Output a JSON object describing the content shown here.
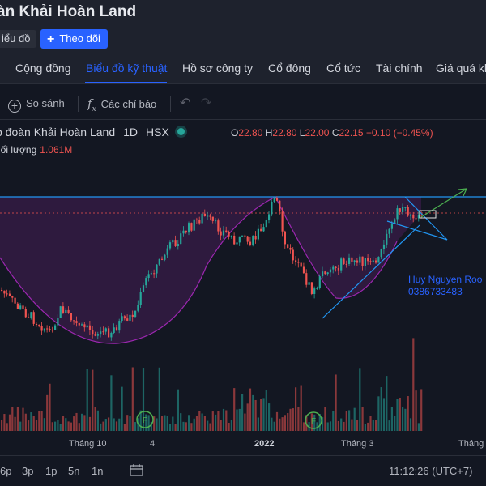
{
  "header": {
    "title": "àn Khải Hoàn Land",
    "chart_button": "iểu đồ",
    "follow_button": "Theo dõi"
  },
  "tabs": [
    {
      "label": "Cộng đồng"
    },
    {
      "label": "Biểu đồ kỹ thuật"
    },
    {
      "label": "Hồ sơ công ty"
    },
    {
      "label": "Cổ đông"
    },
    {
      "label": "Cổ tức"
    },
    {
      "label": "Tài chính"
    },
    {
      "label": "Giá quá khứ"
    }
  ],
  "toolbar": {
    "compare": "So sánh",
    "indicators": "Các chỉ báo"
  },
  "legend": {
    "name": "p đoàn Khải Hoàn Land",
    "interval": "1D",
    "exchange": "HSX",
    "open_label": "O",
    "open": "22.80",
    "high_label": "H",
    "high": "22.80",
    "low_label": "L",
    "low": "22.00",
    "close_label": "C",
    "close": "22.15",
    "change": "−0.10 (−0.45%)",
    "volume_label": "hối lượng",
    "volume": "1.061M"
  },
  "watermark": {
    "name": "Huy Nguyen Roo",
    "phone": "0386733483"
  },
  "xaxis": [
    "Tháng 10",
    "4",
    "2022",
    "Tháng 3",
    "Tháng"
  ],
  "bottom": {
    "ranges": [
      "6p",
      "3p",
      "1p",
      "5n",
      "1n"
    ],
    "time": "11:12:26 (UTC+7)"
  },
  "colors": {
    "up": "#26a69a",
    "down": "#ef5350",
    "pattern": "#9c27b0",
    "trendline": "#2196f3",
    "accent": "#2962ff"
  },
  "chart_data": {
    "type": "candlestick",
    "instrument": "Khải Hoàn Land",
    "interval": "1D",
    "exchange": "HSX",
    "last": {
      "open": 22.8,
      "high": 22.8,
      "low": 22.0,
      "close": 22.15,
      "change": -0.1,
      "change_pct": -0.45
    },
    "volume_last": "1.061M",
    "x_labels": [
      "Tháng 10",
      "4",
      "2022",
      "Tháng 3",
      "Tháng"
    ],
    "volume_markers": [
      "F",
      "F"
    ]
  }
}
